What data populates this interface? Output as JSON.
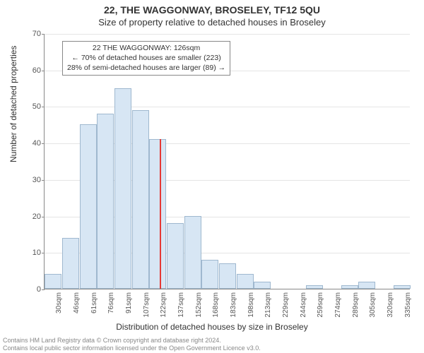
{
  "title": "22, THE WAGGONWAY, BROSELEY, TF12 5QU",
  "subtitle": "Size of property relative to detached houses in Broseley",
  "xlabel": "Distribution of detached houses by size in Broseley",
  "ylabel": "Number of detached properties",
  "footer_line1": "Contains HM Land Registry data © Crown copyright and database right 2024.",
  "footer_line2": "Contains local public sector information licensed under the Open Government Licence v3.0.",
  "chart": {
    "type": "bar",
    "ylim": [
      0,
      70
    ],
    "ytick_step": 10,
    "bar_color": "#d7e6f4",
    "bar_border_color": "#9fb8cf",
    "background_color": "#ffffff",
    "grid_color": "#e5e5e5",
    "axis_color": "#888888",
    "marker_color": "#e53935",
    "label_fontsize": 12,
    "tick_fontsize": 11,
    "categories": [
      "30sqm",
      "46sqm",
      "61sqm",
      "76sqm",
      "91sqm",
      "107sqm",
      "122sqm",
      "137sqm",
      "152sqm",
      "168sqm",
      "183sqm",
      "198sqm",
      "213sqm",
      "229sqm",
      "244sqm",
      "259sqm",
      "274sqm",
      "289sqm",
      "305sqm",
      "320sqm",
      "335sqm"
    ],
    "values": [
      4,
      14,
      45,
      48,
      55,
      49,
      41,
      18,
      20,
      8,
      7,
      4,
      2,
      0,
      0,
      1,
      0,
      1,
      2,
      0,
      1
    ],
    "marker_value_sqm": 126,
    "marker_height": 41
  },
  "annotation": {
    "line1": "22 THE WAGGONWAY: 126sqm",
    "line2": "← 70% of detached houses are smaller (223)",
    "line3": "28% of semi-detached houses are larger (89) →"
  }
}
